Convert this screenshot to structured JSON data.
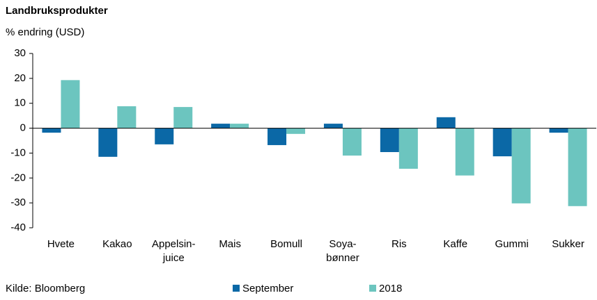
{
  "chart_data": {
    "type": "bar",
    "title": "Landbruksprodukter",
    "subtitle": "% endring (USD)",
    "source": "Kilde: Bloomberg",
    "categories": [
      "Hvete",
      "Kakao",
      "Appelsin-\njuice",
      "Mais",
      "Bomull",
      "Soya-\nbønner",
      "Ris",
      "Kaffe",
      "Gummi",
      "Sukker"
    ],
    "series": [
      {
        "name": "September",
        "color": "#0b68a6",
        "values": [
          -1.8,
          -11.5,
          -6.5,
          1.8,
          -6.8,
          1.8,
          -9.6,
          4.4,
          -11.3,
          -1.8
        ]
      },
      {
        "name": "2018",
        "color": "#6cc5bf",
        "values": [
          19.3,
          8.8,
          8.5,
          1.8,
          -2.3,
          -11,
          -16.3,
          -19,
          -30.2,
          -31.3
        ]
      }
    ],
    "ylim": [
      -40,
      30
    ],
    "yticks": [
      -40,
      -30,
      -20,
      -10,
      0,
      10,
      20,
      30
    ]
  }
}
